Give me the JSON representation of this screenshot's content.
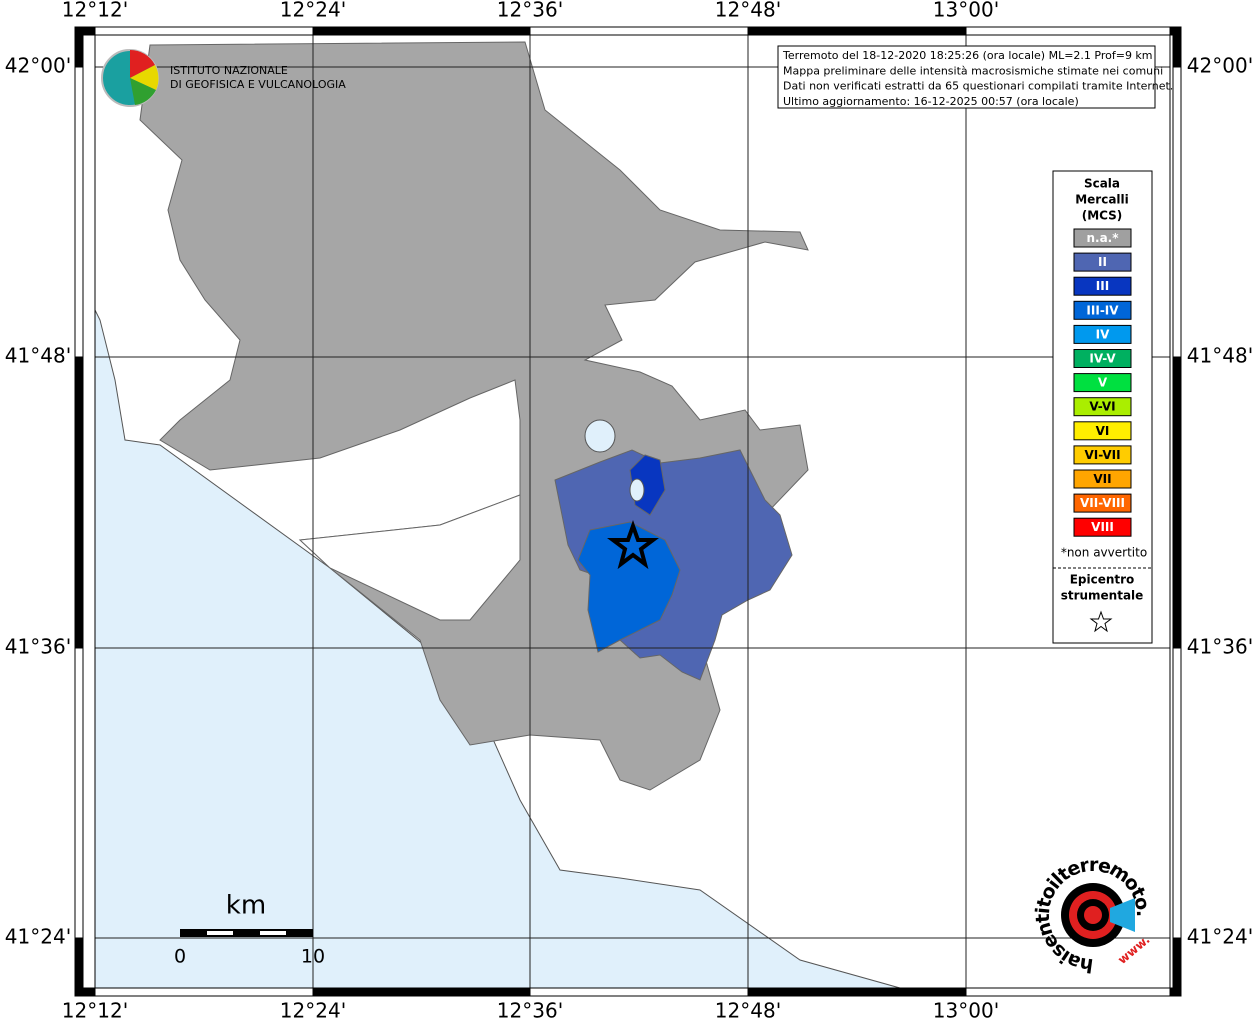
{
  "logo": {
    "line1": "ISTITUTO NAZIONALE",
    "line2": "DI GEOFISICA E VULCANOLOGIA"
  },
  "graticule": {
    "longitudes": [
      "12°12'",
      "12°24'",
      "12°36'",
      "12°48'",
      "13°00'"
    ],
    "latitudes": [
      "42°00'",
      "41°48'",
      "41°36'",
      "41°24'"
    ]
  },
  "info": [
    "Terremoto del 18-12-2020 18:25:26 (ora locale) ML=2.1 Prof=9 km",
    "Mappa preliminare delle intensità macrosismiche stimate nei comuni",
    "Dati non verificati estratti da 65 questionari compilati tramite Internet.",
    "Ultimo aggiornamento: 16-12-2025 00:57 (ora locale)"
  ],
  "legend": {
    "title": [
      "Scala",
      "Mercalli",
      "(MCS)"
    ],
    "items": [
      {
        "label": "n.a.*",
        "color": "#a0a0a0"
      },
      {
        "label": "II",
        "color": "#4f66b2"
      },
      {
        "label": "III",
        "color": "#0836c0"
      },
      {
        "label": "III-IV",
        "color": "#0066d8"
      },
      {
        "label": "IV",
        "color": "#0099ee"
      },
      {
        "label": "IV-V",
        "color": "#00b060"
      },
      {
        "label": "V",
        "color": "#00e040"
      },
      {
        "label": "V-VI",
        "color": "#aaee00"
      },
      {
        "label": "VI",
        "color": "#ffee00"
      },
      {
        "label": "VI-VII",
        "color": "#ffcc00"
      },
      {
        "label": "VII",
        "color": "#ffa500"
      },
      {
        "label": "VII-VIII",
        "color": "#ff6600"
      },
      {
        "label": "VIII",
        "color": "#ff0000"
      }
    ],
    "note": "*non avvertito",
    "epicenter": [
      "Epicentro",
      "strumentale"
    ]
  },
  "scale_bar": {
    "unit": "km",
    "labels": [
      "0",
      "10"
    ]
  },
  "site_logo": {
    "text": "haisentitoilterremoto.it",
    "prefix": "www."
  }
}
